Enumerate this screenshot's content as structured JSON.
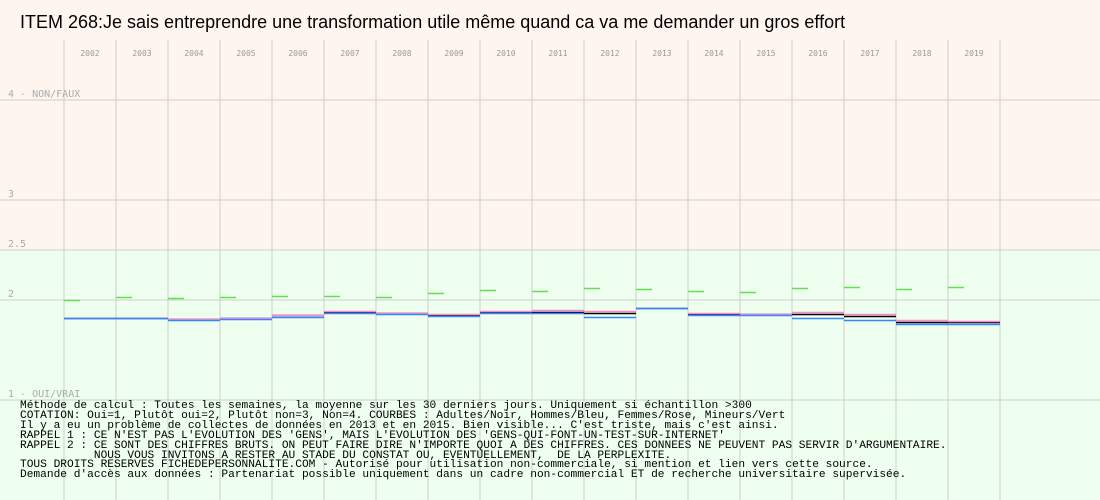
{
  "chart_data": {
    "type": "line",
    "title": "ITEM 268:Je sais entreprendre une transformation utile même quand ca va me demander un gros effort",
    "categories": [
      "2002",
      "2003",
      "2004",
      "2005",
      "2006",
      "2007",
      "2008",
      "2009",
      "2010",
      "2011",
      "2012",
      "2013",
      "2014",
      "2015",
      "2016",
      "2017",
      "2018",
      "2019"
    ],
    "y_ticks": [
      {
        "value": 4,
        "label": "4 - NON/FAUX"
      },
      {
        "value": 3,
        "label": "3"
      },
      {
        "value": 2.5,
        "label": "2.5"
      },
      {
        "value": 2,
        "label": "2"
      },
      {
        "value": 1,
        "label": "1 - OUI/VRAI"
      }
    ],
    "ylim": [
      1,
      4
    ],
    "grid": true,
    "background_zones": [
      {
        "from": 2.5,
        "to": 4,
        "color": "#fff5ef"
      },
      {
        "from": 1,
        "to": 2.5,
        "color": "#efffef"
      }
    ],
    "series": [
      {
        "color": "#000000",
        "values": [
          1.82,
          1.82,
          1.81,
          1.82,
          1.85,
          1.88,
          1.87,
          1.85,
          1.88,
          1.88,
          1.87,
          1.92,
          1.86,
          1.86,
          1.86,
          1.84,
          1.78,
          1.78
        ]
      },
      {
        "color": "#ff88cc",
        "values": [
          1.82,
          1.82,
          1.81,
          1.82,
          1.85,
          1.89,
          1.87,
          1.86,
          1.89,
          1.9,
          1.89,
          1.92,
          1.87,
          1.86,
          1.88,
          1.86,
          1.8,
          1.79
        ]
      },
      {
        "color": "#3388ff",
        "values": [
          1.83,
          1.83,
          1.81,
          1.82,
          1.84,
          1.88,
          1.87,
          1.85,
          1.88,
          1.88,
          1.84,
          1.93,
          1.86,
          1.86,
          1.83,
          1.81,
          1.77,
          1.77
        ]
      },
      {
        "color": "#66dd55",
        "values": [
          2.0,
          2.03,
          2.02,
          2.03,
          2.04,
          2.04,
          2.03,
          2.07,
          2.1,
          2.09,
          2.12,
          2.11,
          2.09,
          2.08,
          2.12,
          2.13,
          2.11,
          2.13
        ]
      }
    ]
  },
  "notes": [
    "Méthode de calcul : Toutes les semaines, la moyenne sur les 30 derniers jours. Uniquement si échantillon >300",
    "COTATION: Oui=1, Plutôt oui=2, Plutôt non=3, Non=4. COURBES : Adultes/Noir, Hommes/Bleu, Femmes/Rose, Mineurs/Vert",
    "Il y a eu un problème de collectes de données en 2013 et en 2015. Bien visible... C'est triste, mais c'est ainsi.",
    "RAPPEL 1 : CE N'EST PAS L'EVOLUTION DES 'GENS', MAIS L'EVOLUTION DES 'GENS-QUI-FONT-UN-TEST-SUR-INTERNET'",
    "RAPPEL 2 : CE SONT DES CHIFFRES BRUTS. ON PEUT FAIRE DIRE N'IMPORTE QUOI A DES CHIFFRES. CES DONNEES NE PEUVENT PAS SERVIR D'ARGUMENTAIRE.",
    "           NOUS VOUS INVITONS A RESTER AU STADE DU CONSTAT OU, EVENTUELLEMENT,  DE LA PERPLEXITE.",
    "TOUS DROITS RESERVES FICHEDEPERSONNALITE.COM - Autorisé pour utilisation non-commerciale, si mention et lien vers cette source.",
    "Demande d'accès aux données : Partenariat possible uniquement dans un cadre non-commercial ET de recherche universitaire supervisée."
  ]
}
